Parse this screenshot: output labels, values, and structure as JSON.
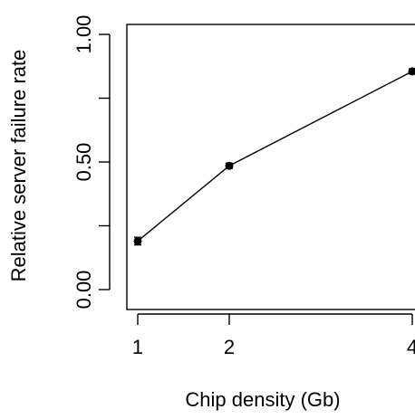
{
  "chart_data": {
    "type": "line",
    "title": "",
    "xlabel": "Chip density (Gb)",
    "ylabel": "Relative server failure rate",
    "x": [
      1,
      2,
      4
    ],
    "x_tick_labels": [
      "1",
      "2",
      "4"
    ],
    "y_ticks": [
      0.0,
      0.25,
      0.5,
      0.75,
      1.0
    ],
    "y_tick_labels": [
      "0.00",
      "",
      "0.50",
      "",
      "1.00"
    ],
    "ylim": [
      0.0,
      1.0
    ],
    "series": [
      {
        "values": [
          0.19,
          0.485,
          0.855
        ],
        "errors": [
          0.015,
          0.01,
          0.01
        ]
      }
    ],
    "grid": false,
    "legend": "none",
    "colors": {
      "line": "#000000",
      "point": "#000000",
      "axis": "#000000",
      "background": "#ffffff"
    }
  }
}
